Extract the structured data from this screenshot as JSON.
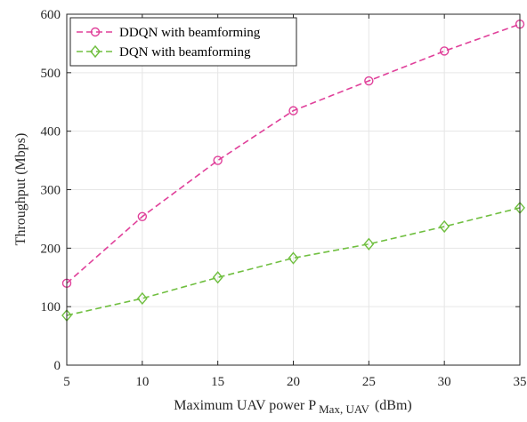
{
  "chart_data": {
    "type": "line",
    "x": [
      5,
      10,
      15,
      20,
      25,
      30,
      35
    ],
    "series": [
      {
        "name": "DDQN with beamforming",
        "values": [
          140,
          254,
          350,
          435,
          486,
          537,
          583
        ],
        "color": "#e0409a",
        "marker": "circle",
        "line_style": "dashed"
      },
      {
        "name": "DQN with beamforming",
        "values": [
          85,
          114,
          150,
          183,
          207,
          237,
          269
        ],
        "color": "#70bf40",
        "marker": "diamond",
        "line_style": "dashed"
      }
    ],
    "xlabel_main": "Maximum UAV power P",
    "xlabel_sub": "Max, UAV",
    "xlabel_unit": "(dBm)",
    "ylabel": "Throughput (Mbps)",
    "xlim": [
      5,
      35
    ],
    "ylim": [
      0,
      600
    ],
    "xticks": [
      "5",
      "10",
      "15",
      "20",
      "25",
      "30",
      "35"
    ],
    "yticks": [
      "0",
      "100",
      "200",
      "300",
      "400",
      "500",
      "600"
    ],
    "grid": true,
    "legend_position": "top-left"
  }
}
